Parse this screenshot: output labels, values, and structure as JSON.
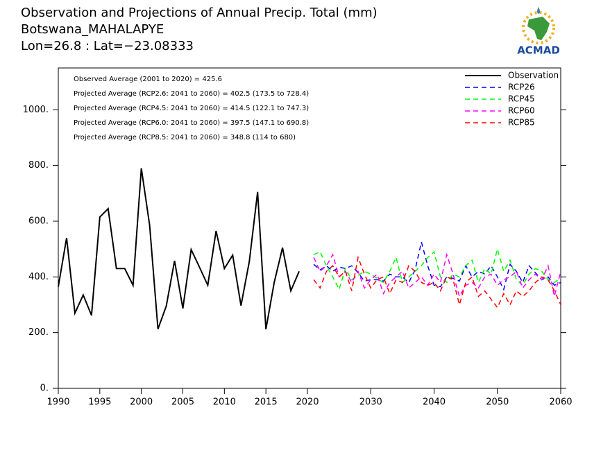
{
  "chart_data": {
    "type": "line",
    "title": "Observation and Projections of Annual Precip. Total (mm)",
    "subtitle": "Botswana_MAHALAPYE",
    "location": "Lon=26.8 : Lat=−23.08333",
    "logo_text": "ACMAD",
    "annotations": [
      "Observed Average (2001 to 2020) = 425.6",
      "Projected Average (RCP2.6: 2041 to 2060) = 402.5 (173.5 to 728.4)",
      "Projected Average (RCP4.5: 2041 to 2060) = 414.5 (122.1 to 747.3)",
      "Projected Average (RCP6.0: 2041 to 2060) = 397.5 (147.1 to 690.8)",
      "Projected Average (RCP8.5: 2041 to 2060) = 348.8 (114 to 680)"
    ],
    "xlim": [
      1990,
      2060
    ],
    "xticks": [
      1990,
      1995,
      2000,
      2005,
      2010,
      2015,
      2020,
      2030,
      2040,
      2050,
      2060
    ],
    "ylim": [
      0,
      1150
    ],
    "yticks": [
      {
        "value": 0,
        "label": "0."
      },
      {
        "value": 200,
        "label": "200."
      },
      {
        "value": 400,
        "label": "400."
      },
      {
        "value": 600,
        "label": "600."
      },
      {
        "value": 800,
        "label": "800."
      },
      {
        "value": 1000,
        "label": "1000."
      }
    ],
    "legend": "upper right",
    "series": [
      {
        "name": "Observation",
        "color": "#000000",
        "dashed": false,
        "x": [
          1990,
          1991,
          1992,
          1993,
          1994,
          1995,
          1996,
          1997,
          1998,
          1999,
          2000,
          2001,
          2002,
          2003,
          2004,
          2005,
          2006,
          2007,
          2008,
          2009,
          2010,
          2011,
          2012,
          2013,
          2014,
          2015,
          2016,
          2017,
          2018,
          2019
        ],
        "values": [
          365,
          540,
          270,
          335,
          262,
          615,
          645,
          430,
          430,
          370,
          790,
          585,
          213,
          295,
          458,
          287,
          498,
          435,
          370,
          565,
          430,
          478,
          297,
          455,
          705,
          212,
          380,
          505,
          350,
          420
        ]
      },
      {
        "name": "RCP26",
        "color": "#0000ff",
        "dashed": true,
        "x": [
          2021,
          2022,
          2023,
          2024,
          2025,
          2026,
          2027,
          2028,
          2029,
          2030,
          2031,
          2032,
          2033,
          2034,
          2035,
          2036,
          2037,
          2038,
          2039,
          2040,
          2041,
          2042,
          2043,
          2044,
          2045,
          2046,
          2047,
          2048,
          2049,
          2050,
          2051,
          2052,
          2053,
          2054,
          2055,
          2056,
          2057,
          2058,
          2059,
          2060
        ],
        "values": [
          445,
          425,
          440,
          420,
          435,
          430,
          440,
          415,
          385,
          390,
          390,
          385,
          410,
          400,
          400,
          380,
          425,
          525,
          440,
          370,
          365,
          400,
          395,
          385,
          440,
          400,
          420,
          410,
          440,
          400,
          355,
          445,
          420,
          380,
          440,
          415,
          390,
          400,
          370,
          380
        ]
      },
      {
        "name": "RCP45",
        "color": "#00ff00",
        "dashed": true,
        "x": [
          2021,
          2022,
          2023,
          2024,
          2025,
          2026,
          2027,
          2028,
          2029,
          2030,
          2031,
          2032,
          2033,
          2034,
          2035,
          2036,
          2037,
          2038,
          2039,
          2040,
          2041,
          2042,
          2043,
          2044,
          2045,
          2046,
          2047,
          2048,
          2049,
          2050,
          2051,
          2052,
          2053,
          2054,
          2055,
          2056,
          2057,
          2058,
          2059,
          2060
        ],
        "values": [
          480,
          490,
          440,
          400,
          355,
          430,
          390,
          405,
          420,
          410,
          395,
          380,
          420,
          470,
          380,
          400,
          420,
          440,
          470,
          490,
          400,
          380,
          410,
          400,
          440,
          460,
          380,
          430,
          410,
          500,
          420,
          460,
          390,
          370,
          410,
          430,
          420,
          390,
          380,
          395
        ]
      },
      {
        "name": "RCP60",
        "color": "#ff00ff",
        "dashed": true,
        "x": [
          2021,
          2022,
          2023,
          2024,
          2025,
          2026,
          2027,
          2028,
          2029,
          2030,
          2031,
          2032,
          2033,
          2034,
          2035,
          2036,
          2037,
          2038,
          2039,
          2040,
          2041,
          2042,
          2043,
          2044,
          2045,
          2046,
          2047,
          2048,
          2049,
          2050,
          2051,
          2052,
          2053,
          2054,
          2055,
          2056,
          2057,
          2058,
          2059,
          2060
        ],
        "values": [
          470,
          420,
          440,
          480,
          400,
          420,
          380,
          420,
          360,
          390,
          410,
          340,
          380,
          400,
          420,
          360,
          380,
          400,
          370,
          410,
          380,
          480,
          410,
          330,
          370,
          380,
          360,
          400,
          410,
          370,
          390,
          400,
          420,
          360,
          390,
          410,
          390,
          440,
          330,
          420
        ]
      },
      {
        "name": "RCP85",
        "color": "#ff0000",
        "dashed": true,
        "x": [
          2021,
          2022,
          2023,
          2024,
          2025,
          2026,
          2027,
          2028,
          2029,
          2030,
          2031,
          2032,
          2033,
          2034,
          2035,
          2036,
          2037,
          2038,
          2039,
          2040,
          2041,
          2042,
          2043,
          2044,
          2045,
          2046,
          2047,
          2048,
          2049,
          2050,
          2051,
          2052,
          2053,
          2054,
          2055,
          2056,
          2057,
          2058,
          2059,
          2060
        ],
        "values": [
          390,
          360,
          420,
          440,
          400,
          420,
          350,
          470,
          410,
          360,
          390,
          400,
          340,
          390,
          380,
          440,
          420,
          380,
          370,
          380,
          350,
          400,
          390,
          300,
          380,
          400,
          330,
          350,
          320,
          290,
          340,
          300,
          350,
          330,
          350,
          380,
          400,
          390,
          350,
          300
        ]
      }
    ]
  }
}
